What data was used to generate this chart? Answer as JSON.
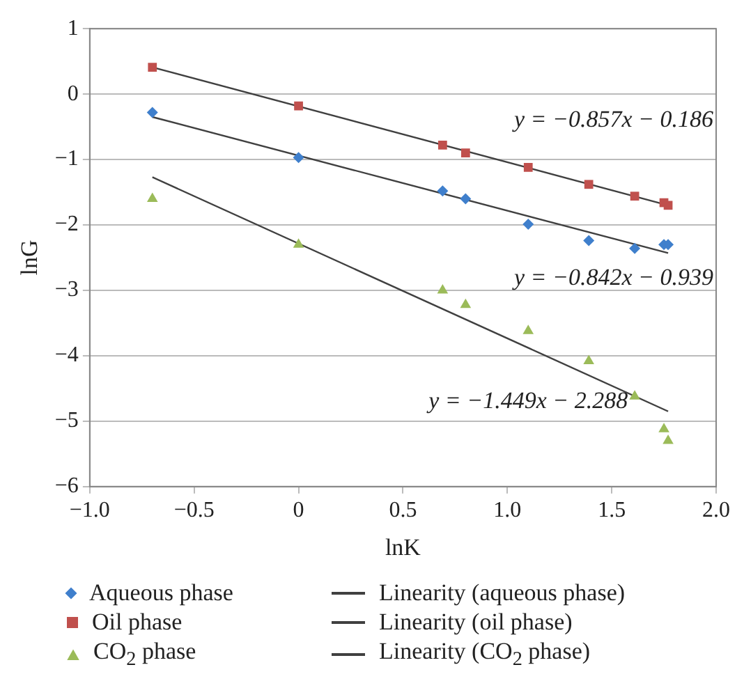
{
  "chart_data": {
    "type": "scatter",
    "xlabel": "lnK",
    "ylabel": "lnG",
    "xlim": [
      -1.0,
      2.0
    ],
    "xticks": [
      {
        "value": -1,
        "label": "−1.0"
      },
      {
        "value": -0.5,
        "label": "−0.5"
      },
      {
        "value": 0,
        "label": "0"
      },
      {
        "value": 0.5,
        "label": "0.5"
      },
      {
        "value": 1,
        "label": "1.0"
      },
      {
        "value": 1.5,
        "label": "1.5"
      },
      {
        "value": 2,
        "label": "2.0"
      }
    ],
    "ylim": [
      -6,
      1
    ],
    "yticks": [
      {
        "value": -6,
        "label": "−6"
      },
      {
        "value": -5,
        "label": "−5"
      },
      {
        "value": -4,
        "label": "−4"
      },
      {
        "value": -3,
        "label": "−3"
      },
      {
        "value": -2,
        "label": "−2"
      },
      {
        "value": -1,
        "label": "−1"
      },
      {
        "value": 0,
        "label": "0"
      },
      {
        "value": 1,
        "label": "1"
      }
    ],
    "grid": "y",
    "legend": "bottom",
    "series": [
      {
        "name": "Aqueous phase",
        "marker": "diamond",
        "color": "#3f7fcc",
        "x": [
          -0.7,
          0,
          0.69,
          0.8,
          1.1,
          1.39,
          1.61,
          1.75,
          1.77
        ],
        "values": [
          -0.28,
          -0.97,
          -1.48,
          -1.6,
          -1.99,
          -2.24,
          -2.36,
          -2.3,
          -2.3
        ]
      },
      {
        "name": "Linearity (aqueous phase)",
        "type": "line",
        "marker": "none",
        "color": "#404040",
        "x": [
          -0.7,
          1.77
        ],
        "values": [
          -0.35,
          -2.43
        ]
      },
      {
        "name": "Oil phase",
        "marker": "square",
        "color": "#c0504d",
        "x": [
          -0.7,
          0,
          0.69,
          0.8,
          1.1,
          1.39,
          1.61,
          1.75,
          1.77
        ],
        "values": [
          0.41,
          -0.18,
          -0.78,
          -0.9,
          -1.12,
          -1.38,
          -1.56,
          -1.66,
          -1.7
        ]
      },
      {
        "name": "Linearity (oil phase)",
        "type": "line",
        "marker": "none",
        "color": "#404040",
        "x": [
          -0.7,
          1.77
        ],
        "values": [
          0.41,
          -1.7
        ]
      },
      {
        "name": "CO$_{2}$ phase",
        "marker": "triangle",
        "color": "#9bbb59",
        "x": [
          -0.7,
          0,
          0.69,
          0.8,
          1.1,
          1.39,
          1.61,
          1.75,
          1.77
        ],
        "values": [
          -1.6,
          -2.3,
          -3.0,
          -3.22,
          -3.62,
          -4.08,
          -4.62,
          -5.12,
          -5.3
        ]
      },
      {
        "name": "Linearity (CO$_{2}$ phase)",
        "type": "line",
        "marker": "none",
        "color": "#404040",
        "x": [
          -0.7,
          1.77
        ],
        "values": [
          -1.27,
          -4.85
        ]
      }
    ],
    "annotations": [
      "y = −0.857x − 0.186",
      "y = −0.842x − 0.939",
      "y = −1.449x − 2.288"
    ]
  }
}
